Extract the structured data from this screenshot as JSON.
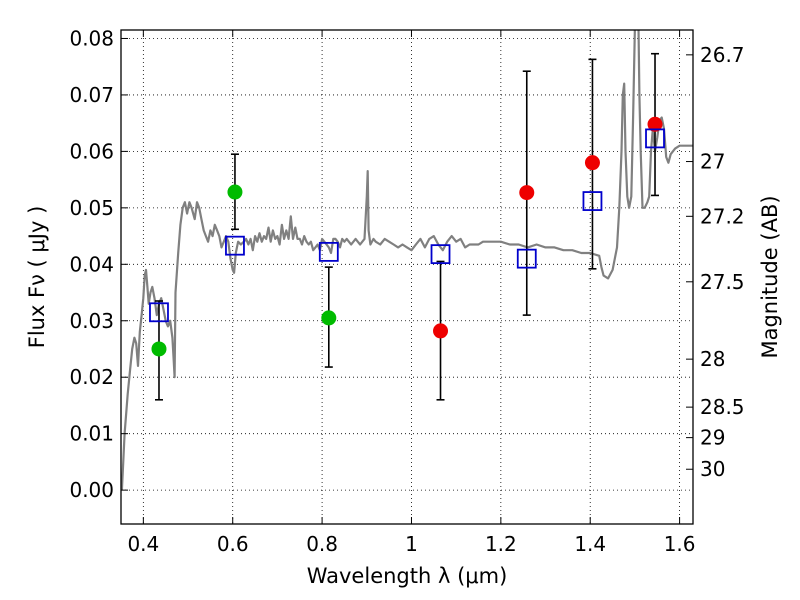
{
  "chart_data": {
    "type": "scatter",
    "xlabel": "Wavelength  λ (μm)",
    "ylabel": "Flux  Fν  ( μJy )",
    "y2label": "Magnitude (AB)",
    "xlim": [
      0.35,
      1.63
    ],
    "ylim": [
      -0.006,
      0.0815
    ],
    "grid": true,
    "x_ticks": [
      {
        "value": 0.4,
        "label": "0.4"
      },
      {
        "value": 0.6,
        "label": "0.6"
      },
      {
        "value": 0.8,
        "label": "0.8"
      },
      {
        "value": 1.0,
        "label": "1"
      },
      {
        "value": 1.2,
        "label": "1.2"
      },
      {
        "value": 1.4,
        "label": "1.4"
      },
      {
        "value": 1.6,
        "label": "1.6"
      }
    ],
    "y_ticks": [
      {
        "value": 0.0,
        "label": "0.00"
      },
      {
        "value": 0.01,
        "label": "0.01"
      },
      {
        "value": 0.02,
        "label": "0.02"
      },
      {
        "value": 0.03,
        "label": "0.03"
      },
      {
        "value": 0.04,
        "label": "0.04"
      },
      {
        "value": 0.05,
        "label": "0.05"
      },
      {
        "value": 0.06,
        "label": "0.06"
      },
      {
        "value": 0.07,
        "label": "0.07"
      },
      {
        "value": 0.08,
        "label": "0.08"
      }
    ],
    "y2_ticks": [
      {
        "mag": 26.7,
        "flux": 0.0771,
        "label": "26.7"
      },
      {
        "mag": 27,
        "flux": 0.0582,
        "label": "27"
      },
      {
        "mag": 27.2,
        "flux": 0.0485,
        "label": "27.2"
      },
      {
        "mag": 27.5,
        "flux": 0.0369,
        "label": "27.5"
      },
      {
        "mag": 28,
        "flux": 0.0232,
        "label": "28"
      },
      {
        "mag": 28.5,
        "flux": 0.0147,
        "label": "28.5"
      },
      {
        "mag": 29,
        "flux": 0.0093,
        "label": "29"
      },
      {
        "mag": 30,
        "flux": 0.0037,
        "label": "30"
      }
    ],
    "colors": {
      "spectrum": "#808080",
      "green": "#00bb00",
      "red": "#ee0000",
      "model": "#0000cc",
      "errorbar": "#000000"
    },
    "spectrum": [
      [
        0.352,
        0.0
      ],
      [
        0.358,
        0.01
      ],
      [
        0.365,
        0.017
      ],
      [
        0.37,
        0.021
      ],
      [
        0.375,
        0.025
      ],
      [
        0.38,
        0.027
      ],
      [
        0.384,
        0.026
      ],
      [
        0.388,
        0.022
      ],
      [
        0.392,
        0.028
      ],
      [
        0.396,
        0.031
      ],
      [
        0.4,
        0.034
      ],
      [
        0.403,
        0.038
      ],
      [
        0.406,
        0.039
      ],
      [
        0.409,
        0.036
      ],
      [
        0.412,
        0.033
      ],
      [
        0.416,
        0.035
      ],
      [
        0.42,
        0.036
      ],
      [
        0.425,
        0.034
      ],
      [
        0.43,
        0.031
      ],
      [
        0.435,
        0.033
      ],
      [
        0.44,
        0.034
      ],
      [
        0.445,
        0.032
      ],
      [
        0.45,
        0.03
      ],
      [
        0.455,
        0.029
      ],
      [
        0.46,
        0.03
      ],
      [
        0.465,
        0.027
      ],
      [
        0.468,
        0.023
      ],
      [
        0.47,
        0.02
      ],
      [
        0.472,
        0.035
      ],
      [
        0.478,
        0.042
      ],
      [
        0.483,
        0.047
      ],
      [
        0.488,
        0.05
      ],
      [
        0.493,
        0.051
      ],
      [
        0.498,
        0.049
      ],
      [
        0.503,
        0.051
      ],
      [
        0.508,
        0.05
      ],
      [
        0.515,
        0.048
      ],
      [
        0.52,
        0.051
      ],
      [
        0.525,
        0.05
      ],
      [
        0.53,
        0.048
      ],
      [
        0.535,
        0.046
      ],
      [
        0.54,
        0.045
      ],
      [
        0.545,
        0.044
      ],
      [
        0.55,
        0.046
      ],
      [
        0.555,
        0.045
      ],
      [
        0.56,
        0.047
      ],
      [
        0.565,
        0.046
      ],
      [
        0.57,
        0.045
      ],
      [
        0.575,
        0.043
      ],
      [
        0.58,
        0.044
      ],
      [
        0.585,
        0.045
      ],
      [
        0.59,
        0.044
      ],
      [
        0.595,
        0.041
      ],
      [
        0.6,
        0.039
      ],
      [
        0.603,
        0.0385
      ],
      [
        0.607,
        0.042
      ],
      [
        0.612,
        0.044
      ],
      [
        0.618,
        0.0435
      ],
      [
        0.625,
        0.044
      ],
      [
        0.63,
        0.0445
      ],
      [
        0.635,
        0.0435
      ],
      [
        0.64,
        0.0445
      ],
      [
        0.645,
        0.0425
      ],
      [
        0.65,
        0.045
      ],
      [
        0.655,
        0.044
      ],
      [
        0.66,
        0.0455
      ],
      [
        0.665,
        0.044
      ],
      [
        0.67,
        0.045
      ],
      [
        0.675,
        0.0445
      ],
      [
        0.68,
        0.0465
      ],
      [
        0.685,
        0.044
      ],
      [
        0.69,
        0.046
      ],
      [
        0.695,
        0.0445
      ],
      [
        0.7,
        0.045
      ],
      [
        0.705,
        0.0435
      ],
      [
        0.71,
        0.047
      ],
      [
        0.715,
        0.0445
      ],
      [
        0.72,
        0.046
      ],
      [
        0.725,
        0.0445
      ],
      [
        0.73,
        0.0485
      ],
      [
        0.735,
        0.0445
      ],
      [
        0.74,
        0.0465
      ],
      [
        0.745,
        0.0445
      ],
      [
        0.75,
        0.0445
      ],
      [
        0.755,
        0.0435
      ],
      [
        0.76,
        0.045
      ],
      [
        0.765,
        0.044
      ],
      [
        0.77,
        0.0435
      ],
      [
        0.775,
        0.044
      ],
      [
        0.78,
        0.0425
      ],
      [
        0.785,
        0.043
      ],
      [
        0.79,
        0.0435
      ],
      [
        0.795,
        0.0425
      ],
      [
        0.8,
        0.0445
      ],
      [
        0.805,
        0.044
      ],
      [
        0.81,
        0.0435
      ],
      [
        0.815,
        0.043
      ],
      [
        0.82,
        0.042
      ],
      [
        0.825,
        0.0445
      ],
      [
        0.83,
        0.0445
      ],
      [
        0.835,
        0.044
      ],
      [
        0.84,
        0.043
      ],
      [
        0.845,
        0.0445
      ],
      [
        0.85,
        0.044
      ],
      [
        0.855,
        0.0445
      ],
      [
        0.86,
        0.044
      ],
      [
        0.865,
        0.0435
      ],
      [
        0.87,
        0.044
      ],
      [
        0.875,
        0.0445
      ],
      [
        0.88,
        0.044
      ],
      [
        0.885,
        0.0435
      ],
      [
        0.89,
        0.044
      ],
      [
        0.895,
        0.0445
      ],
      [
        0.9,
        0.052
      ],
      [
        0.902,
        0.0565
      ],
      [
        0.904,
        0.046
      ],
      [
        0.908,
        0.0435
      ],
      [
        0.915,
        0.0445
      ],
      [
        0.92,
        0.044
      ],
      [
        0.93,
        0.0435
      ],
      [
        0.94,
        0.0445
      ],
      [
        0.95,
        0.044
      ],
      [
        0.96,
        0.0435
      ],
      [
        0.97,
        0.043
      ],
      [
        0.98,
        0.0435
      ],
      [
        0.99,
        0.043
      ],
      [
        1.0,
        0.0425
      ],
      [
        1.01,
        0.0435
      ],
      [
        1.02,
        0.0445
      ],
      [
        1.03,
        0.043
      ],
      [
        1.04,
        0.0445
      ],
      [
        1.05,
        0.045
      ],
      [
        1.06,
        0.0435
      ],
      [
        1.07,
        0.0425
      ],
      [
        1.08,
        0.044
      ],
      [
        1.09,
        0.045
      ],
      [
        1.1,
        0.044
      ],
      [
        1.11,
        0.0445
      ],
      [
        1.12,
        0.043
      ],
      [
        1.13,
        0.0435
      ],
      [
        1.14,
        0.0435
      ],
      [
        1.15,
        0.0435
      ],
      [
        1.16,
        0.044
      ],
      [
        1.17,
        0.044
      ],
      [
        1.18,
        0.044
      ],
      [
        1.2,
        0.044
      ],
      [
        1.22,
        0.0435
      ],
      [
        1.24,
        0.0435
      ],
      [
        1.26,
        0.043
      ],
      [
        1.28,
        0.0435
      ],
      [
        1.3,
        0.043
      ],
      [
        1.32,
        0.043
      ],
      [
        1.34,
        0.0425
      ],
      [
        1.36,
        0.0425
      ],
      [
        1.38,
        0.042
      ],
      [
        1.4,
        0.042
      ],
      [
        1.42,
        0.0415
      ],
      [
        1.425,
        0.0395
      ],
      [
        1.43,
        0.038
      ],
      [
        1.44,
        0.0375
      ],
      [
        1.45,
        0.039
      ],
      [
        1.455,
        0.041
      ],
      [
        1.46,
        0.043
      ],
      [
        1.465,
        0.05
      ],
      [
        1.47,
        0.06
      ],
      [
        1.473,
        0.07
      ],
      [
        1.476,
        0.072
      ],
      [
        1.479,
        0.06
      ],
      [
        1.483,
        0.052
      ],
      [
        1.487,
        0.05
      ],
      [
        1.492,
        0.052
      ],
      [
        1.496,
        0.066
      ],
      [
        1.5,
        0.082
      ],
      [
        1.504,
        0.082
      ],
      [
        1.508,
        0.082
      ],
      [
        1.51,
        0.07
      ],
      [
        1.513,
        0.06
      ],
      [
        1.517,
        0.05
      ],
      [
        1.522,
        0.05
      ],
      [
        1.528,
        0.051
      ],
      [
        1.532,
        0.052
      ],
      [
        1.536,
        0.06
      ],
      [
        1.54,
        0.064
      ],
      [
        1.545,
        0.06
      ],
      [
        1.55,
        0.0625
      ],
      [
        1.555,
        0.0655
      ],
      [
        1.56,
        0.066
      ],
      [
        1.565,
        0.064
      ],
      [
        1.57,
        0.059
      ],
      [
        1.575,
        0.058
      ],
      [
        1.58,
        0.0595
      ],
      [
        1.59,
        0.0605
      ],
      [
        1.6,
        0.061
      ],
      [
        1.63,
        0.061
      ]
    ],
    "series": [
      {
        "marker": "circle",
        "color": "green",
        "points": [
          {
            "x": 0.435,
            "y": 0.025,
            "err_low": 0.016,
            "err_high": 0.0335
          },
          {
            "x": 0.605,
            "y": 0.0528,
            "err_low": 0.0462,
            "err_high": 0.0595
          },
          {
            "x": 0.815,
            "y": 0.0305,
            "err_low": 0.0218,
            "err_high": 0.0395
          }
        ]
      },
      {
        "marker": "circle",
        "color": "red",
        "points": [
          {
            "x": 1.065,
            "y": 0.0282,
            "err_low": 0.016,
            "err_high": 0.0405
          },
          {
            "x": 1.258,
            "y": 0.0527,
            "err_low": 0.031,
            "err_high": 0.0742
          },
          {
            "x": 1.405,
            "y": 0.058,
            "err_low": 0.0392,
            "err_high": 0.0763
          },
          {
            "x": 1.545,
            "y": 0.0648,
            "err_low": 0.0522,
            "err_high": 0.0773
          }
        ]
      },
      {
        "marker": "square",
        "color": "model",
        "points": [
          {
            "x": 0.435,
            "y": 0.0315
          },
          {
            "x": 0.605,
            "y": 0.0433
          },
          {
            "x": 0.815,
            "y": 0.0422
          },
          {
            "x": 1.065,
            "y": 0.0418
          },
          {
            "x": 1.258,
            "y": 0.041
          },
          {
            "x": 1.405,
            "y": 0.0512
          },
          {
            "x": 1.545,
            "y": 0.0623
          }
        ]
      }
    ]
  }
}
